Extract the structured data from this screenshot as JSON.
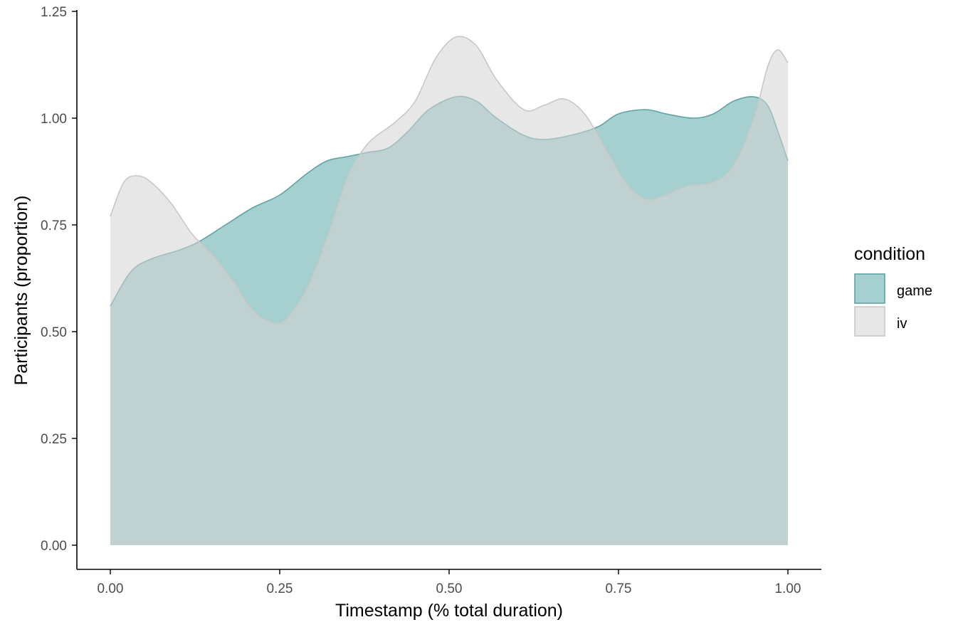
{
  "chart_data": {
    "type": "area",
    "xlabel": "Timestamp (% total duration)",
    "ylabel": "Participants (proportion)",
    "xlim": [
      0,
      1
    ],
    "ylim": [
      0,
      1.25
    ],
    "x_ticks": [
      "0.00",
      "0.25",
      "0.50",
      "0.75",
      "1.00"
    ],
    "y_ticks": [
      "0.00",
      "0.25",
      "0.50",
      "0.75",
      "1.00",
      "1.25"
    ],
    "grid": false,
    "legend": {
      "title": "condition",
      "position": "right",
      "entries": [
        "game",
        "iv"
      ]
    },
    "series": [
      {
        "name": "game",
        "color": "#77b5b6",
        "points": [
          [
            0.0,
            0.56
          ],
          [
            0.03,
            0.64
          ],
          [
            0.06,
            0.67
          ],
          [
            0.1,
            0.69
          ],
          [
            0.13,
            0.71
          ],
          [
            0.17,
            0.75
          ],
          [
            0.21,
            0.79
          ],
          [
            0.25,
            0.82
          ],
          [
            0.29,
            0.87
          ],
          [
            0.32,
            0.9
          ],
          [
            0.35,
            0.91
          ],
          [
            0.38,
            0.92
          ],
          [
            0.41,
            0.93
          ],
          [
            0.44,
            0.97
          ],
          [
            0.47,
            1.02
          ],
          [
            0.51,
            1.05
          ],
          [
            0.54,
            1.04
          ],
          [
            0.57,
            1.0
          ],
          [
            0.61,
            0.96
          ],
          [
            0.64,
            0.95
          ],
          [
            0.68,
            0.96
          ],
          [
            0.72,
            0.98
          ],
          [
            0.75,
            1.01
          ],
          [
            0.79,
            1.02
          ],
          [
            0.82,
            1.01
          ],
          [
            0.86,
            1.0
          ],
          [
            0.89,
            1.01
          ],
          [
            0.92,
            1.04
          ],
          [
            0.95,
            1.05
          ],
          [
            0.97,
            1.03
          ],
          [
            0.985,
            0.97
          ],
          [
            1.0,
            0.9
          ]
        ]
      },
      {
        "name": "iv",
        "color": "#d3d3d3",
        "points": [
          [
            0.0,
            0.77
          ],
          [
            0.02,
            0.85
          ],
          [
            0.04,
            0.865
          ],
          [
            0.06,
            0.85
          ],
          [
            0.09,
            0.8
          ],
          [
            0.12,
            0.73
          ],
          [
            0.15,
            0.68
          ],
          [
            0.18,
            0.62
          ],
          [
            0.21,
            0.55
          ],
          [
            0.24,
            0.52
          ],
          [
            0.26,
            0.53
          ],
          [
            0.29,
            0.6
          ],
          [
            0.32,
            0.72
          ],
          [
            0.35,
            0.86
          ],
          [
            0.38,
            0.94
          ],
          [
            0.42,
            0.99
          ],
          [
            0.45,
            1.04
          ],
          [
            0.48,
            1.14
          ],
          [
            0.51,
            1.19
          ],
          [
            0.54,
            1.17
          ],
          [
            0.57,
            1.09
          ],
          [
            0.61,
            1.02
          ],
          [
            0.64,
            1.03
          ],
          [
            0.67,
            1.045
          ],
          [
            0.7,
            1.01
          ],
          [
            0.73,
            0.93
          ],
          [
            0.76,
            0.85
          ],
          [
            0.79,
            0.81
          ],
          [
            0.82,
            0.82
          ],
          [
            0.85,
            0.84
          ],
          [
            0.89,
            0.85
          ],
          [
            0.92,
            0.89
          ],
          [
            0.95,
            1.0
          ],
          [
            0.97,
            1.12
          ],
          [
            0.985,
            1.16
          ],
          [
            1.0,
            1.13
          ]
        ]
      }
    ]
  },
  "colors": {
    "game_fill": "#77b5b6",
    "game_line": "#5fa3a4",
    "iv_fill": "#d3d3d3",
    "iv_line": "#c8c8c8",
    "axis": "#000000",
    "tick_label": "#4d4d4d"
  }
}
